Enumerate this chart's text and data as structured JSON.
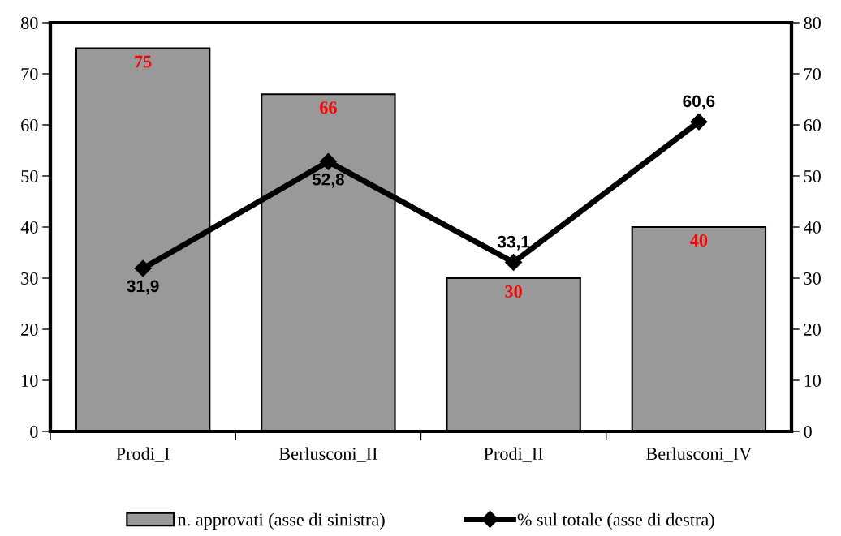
{
  "chart_data": {
    "type": "bar",
    "categories": [
      "Prodi_I",
      "Berlusconi_II",
      "Prodi_II",
      "Berlusconi_IV"
    ],
    "series": [
      {
        "name": "n. approvati (asse di sinistra)",
        "color": "#999999",
        "values": [
          75,
          66,
          30,
          40
        ],
        "data_labels": true
      },
      {
        "name": "% sul totale (asse di destra)",
        "type": "line",
        "axis": "y2",
        "color": "#000000",
        "marker": "diamond",
        "line_style": "solid",
        "values": [
          31.9,
          52.8,
          33.1,
          60.6
        ],
        "value_labels": [
          "31,9",
          "52,8",
          "33,1",
          "60,6"
        ]
      }
    ],
    "ylim": [
      0,
      80
    ],
    "yticks": [
      0,
      10,
      20,
      30,
      40,
      50,
      60,
      70,
      80
    ],
    "y2lim": [
      0,
      80
    ],
    "y2ticks": [
      0,
      10,
      20,
      30,
      40,
      50,
      60,
      70,
      80
    ],
    "grid": false,
    "legend": "bottom"
  }
}
